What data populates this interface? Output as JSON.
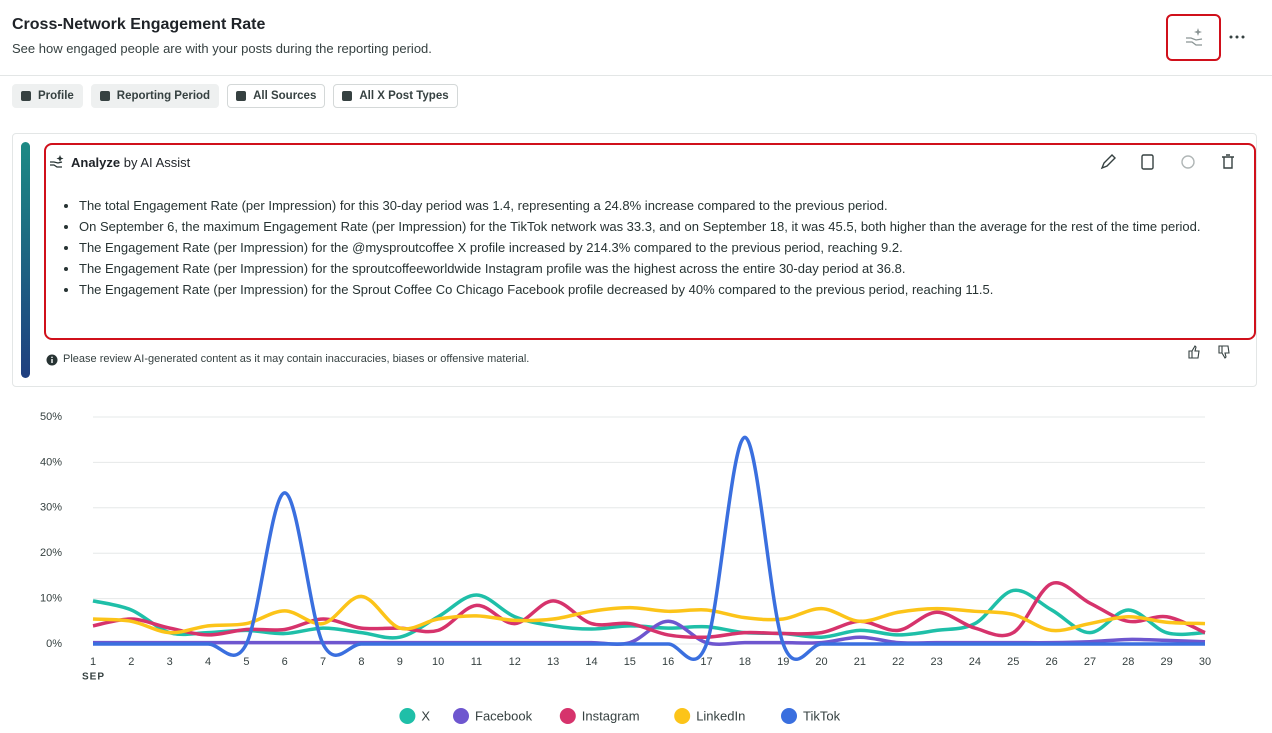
{
  "header": {
    "title": "Cross-Network Engagement Rate",
    "subtitle": "See how engaged people are with your posts during the reporting period."
  },
  "filters": [
    "Profile",
    "Reporting Period",
    "All Sources",
    "All X Post Types"
  ],
  "ai_panel": {
    "title_bold": "Analyze",
    "title_rest": "by AI Assist",
    "bullets": [
      "The total Engagement Rate (per Impression) for this 30-day period was 1.4, representing a 24.8% increase compared to the previous period.",
      "On September 6, the maximum Engagement Rate (per Impression) for the TikTok network was 33.3, and on September 18, it was 45.5, both higher than the average for the rest of the time period.",
      "The Engagement Rate (per Impression) for the @mysproutcoffee X profile increased by 214.3% compared to the previous period, reaching 9.2.",
      "The Engagement Rate (per Impression) for the sproutcoffeeworldwide Instagram profile was the highest across the entire 30-day period at 36.8.",
      "The Engagement Rate (per Impression) for the Sprout Coffee Co Chicago Facebook profile decreased by 40% compared to the previous period, reaching 11.5."
    ],
    "disclaimer": "Please review AI-generated content as it may contain inaccuracies, biases or offensive material."
  },
  "chart_data": {
    "type": "line",
    "x_label": "SEP",
    "x": [
      1,
      2,
      3,
      4,
      5,
      6,
      7,
      8,
      9,
      10,
      11,
      12,
      13,
      14,
      15,
      16,
      17,
      18,
      19,
      20,
      21,
      22,
      23,
      24,
      25,
      26,
      27,
      28,
      29,
      30
    ],
    "xlim": [
      1,
      30
    ],
    "xticks": [
      1,
      2,
      3,
      4,
      5,
      6,
      7,
      8,
      9,
      10,
      11,
      12,
      13,
      14,
      15,
      16,
      17,
      18,
      19,
      20,
      21,
      22,
      23,
      24,
      25,
      26,
      27,
      28,
      29,
      30
    ],
    "ylim": [
      0,
      50
    ],
    "yticks": [
      {
        "value": 0,
        "label": "0%"
      },
      {
        "value": 10,
        "label": "10%"
      },
      {
        "value": 20,
        "label": "20%"
      },
      {
        "value": 30,
        "label": "30%"
      },
      {
        "value": 40,
        "label": "40%"
      },
      {
        "value": 50,
        "label": "50%"
      }
    ],
    "grid": true,
    "legend": "bottom",
    "series": [
      {
        "name": "X",
        "color": "#1fbfa8",
        "values": [
          9.5,
          7.5,
          2.5,
          2.5,
          3,
          2.3,
          3.5,
          2.5,
          1.5,
          6,
          10.8,
          6,
          4,
          3.3,
          4,
          3.5,
          3.8,
          2.5,
          2.3,
          1.5,
          3,
          2,
          3,
          4.5,
          11.8,
          7.5,
          2.5,
          7.5,
          2.5,
          2.5
        ]
      },
      {
        "name": "Facebook",
        "color": "#6e56cf",
        "values": [
          0.3,
          0.3,
          0.3,
          0.3,
          0.3,
          0.3,
          0.3,
          0.3,
          0.3,
          0.3,
          0.3,
          0.3,
          0.3,
          0.3,
          0.3,
          5,
          0.3,
          0.3,
          0.3,
          0.3,
          1.5,
          0.3,
          0.3,
          0.3,
          0.3,
          0.3,
          0.5,
          1,
          0.8,
          0.5
        ]
      },
      {
        "name": "Instagram",
        "color": "#d6336c",
        "values": [
          4,
          5.5,
          3.5,
          2,
          3.2,
          3.2,
          5.5,
          3.5,
          3.5,
          3,
          8.5,
          4.5,
          9.5,
          4.5,
          4.5,
          2,
          1.5,
          2.5,
          2.3,
          2.5,
          5,
          3,
          7,
          3.5,
          2.5,
          13.3,
          9,
          5,
          6,
          2.5
        ]
      },
      {
        "name": "LinkedIn",
        "color": "#fcc419",
        "values": [
          5.5,
          5,
          2.5,
          4,
          4.5,
          7.3,
          4.5,
          10.5,
          3.5,
          5.5,
          6.2,
          5.2,
          5.5,
          7.2,
          8,
          7.2,
          7.5,
          5.8,
          5.5,
          7.8,
          5,
          7,
          7.8,
          7.2,
          6.5,
          3,
          4.5,
          6,
          4.8,
          4.5
        ]
      },
      {
        "name": "TikTok",
        "color": "#3a6fdf",
        "values": [
          0,
          0,
          0,
          0,
          0,
          33.3,
          0,
          0,
          0,
          0,
          0,
          0,
          0,
          0,
          0,
          0,
          0,
          45.5,
          0,
          0,
          0,
          0,
          0,
          0,
          0,
          0,
          0,
          0,
          0,
          0
        ]
      }
    ]
  }
}
